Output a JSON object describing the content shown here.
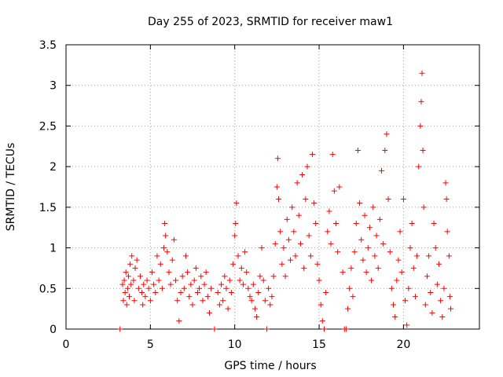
{
  "chart_data": {
    "type": "scatter",
    "title": "Day 255 of 2023, SRMTID for receiver maw1",
    "xlabel": "GPS time / hours",
    "ylabel": "SRMTID / TECUs",
    "xlim": [
      0,
      24.5
    ],
    "ylim": [
      0,
      3.5
    ],
    "xticks": [
      0,
      5,
      10,
      15,
      20
    ],
    "xtick_labels": [
      "0",
      "5",
      "10",
      "15",
      "20"
    ],
    "yticks": [
      0,
      0.5,
      1,
      1.5,
      2,
      2.5,
      3,
      3.5
    ],
    "ytick_labels": [
      "0",
      "0.5",
      "1",
      "1.5",
      "2",
      "2.5",
      "3",
      "3.5"
    ],
    "grid": true,
    "marker": "+",
    "color": "#ff0000",
    "series": [
      {
        "name": "maw1",
        "points": [
          [
            3.2,
            0.0
          ],
          [
            3.35,
            0.55
          ],
          [
            3.4,
            0.35
          ],
          [
            3.45,
            0.6
          ],
          [
            3.5,
            0.45
          ],
          [
            3.55,
            0.7
          ],
          [
            3.6,
            0.3
          ],
          [
            3.65,
            0.5
          ],
          [
            3.7,
            0.65
          ],
          [
            3.75,
            0.4
          ],
          [
            3.8,
            0.8
          ],
          [
            3.85,
            0.55
          ],
          [
            3.9,
            0.9
          ],
          [
            4.0,
            0.6
          ],
          [
            4.05,
            0.35
          ],
          [
            4.1,
            0.75
          ],
          [
            4.2,
            0.85
          ],
          [
            4.3,
            0.5
          ],
          [
            4.4,
            0.65
          ],
          [
            4.5,
            0.45
          ],
          [
            4.55,
            0.3
          ],
          [
            4.6,
            0.55
          ],
          [
            4.7,
            0.4
          ],
          [
            4.8,
            0.6
          ],
          [
            4.9,
            0.5
          ],
          [
            5.0,
            0.35
          ],
          [
            5.1,
            0.7
          ],
          [
            5.2,
            0.55
          ],
          [
            5.3,
            0.45
          ],
          [
            5.4,
            0.9
          ],
          [
            5.5,
            0.6
          ],
          [
            5.6,
            0.8
          ],
          [
            5.7,
            0.5
          ],
          [
            5.8,
            1.0
          ],
          [
            5.85,
            1.3
          ],
          [
            5.9,
            1.15
          ],
          [
            6.0,
            0.95
          ],
          [
            6.1,
            0.7
          ],
          [
            6.2,
            0.55
          ],
          [
            6.3,
            0.85
          ],
          [
            6.4,
            1.1
          ],
          [
            6.5,
            0.6
          ],
          [
            6.6,
            0.35
          ],
          [
            6.7,
            0.1
          ],
          [
            6.8,
            0.45
          ],
          [
            6.9,
            0.65
          ],
          [
            7.0,
            0.5
          ],
          [
            7.1,
            0.9
          ],
          [
            7.2,
            0.7
          ],
          [
            7.3,
            0.4
          ],
          [
            7.4,
            0.55
          ],
          [
            7.5,
            0.3
          ],
          [
            7.6,
            0.6
          ],
          [
            7.7,
            0.75
          ],
          [
            7.8,
            0.45
          ],
          [
            7.9,
            0.5
          ],
          [
            8.0,
            0.65
          ],
          [
            8.1,
            0.35
          ],
          [
            8.2,
            0.55
          ],
          [
            8.3,
            0.7
          ],
          [
            8.4,
            0.4
          ],
          [
            8.5,
            0.2
          ],
          [
            8.6,
            0.5
          ],
          [
            8.8,
            0.0
          ],
          [
            9.0,
            0.45
          ],
          [
            9.1,
            0.3
          ],
          [
            9.2,
            0.55
          ],
          [
            9.3,
            0.35
          ],
          [
            9.4,
            0.65
          ],
          [
            9.5,
            0.5
          ],
          [
            9.6,
            0.25
          ],
          [
            9.7,
            0.6
          ],
          [
            9.8,
            0.45
          ],
          [
            9.9,
            0.8
          ],
          [
            10.0,
            1.15
          ],
          [
            10.05,
            1.3
          ],
          [
            10.1,
            1.55
          ],
          [
            10.2,
            0.9
          ],
          [
            10.3,
            0.6
          ],
          [
            10.4,
            0.75
          ],
          [
            10.5,
            0.55
          ],
          [
            10.6,
            0.95
          ],
          [
            10.7,
            0.7
          ],
          [
            10.8,
            0.5
          ],
          [
            10.9,
            0.4
          ],
          [
            11.0,
            0.35
          ],
          [
            11.1,
            0.55
          ],
          [
            11.2,
            0.25
          ],
          [
            11.3,
            0.15
          ],
          [
            11.4,
            0.45
          ],
          [
            11.5,
            0.65
          ],
          [
            11.6,
            1.0
          ],
          [
            11.7,
            0.6
          ],
          [
            11.8,
            0.35
          ],
          [
            11.9,
            0.0
          ],
          [
            12.0,
            0.5
          ],
          [
            12.1,
            0.3
          ],
          [
            12.2,
            0.4
          ],
          [
            12.3,
            0.65
          ],
          [
            12.4,
            1.05
          ],
          [
            12.5,
            1.75
          ],
          [
            12.55,
            2.1
          ],
          [
            12.6,
            1.6
          ],
          [
            12.7,
            1.2
          ],
          [
            12.8,
            0.8
          ],
          [
            12.9,
            1.0
          ],
          [
            13.0,
            0.65
          ],
          [
            13.1,
            1.35
          ],
          [
            13.2,
            1.1
          ],
          [
            13.3,
            0.85
          ],
          [
            13.4,
            1.5
          ],
          [
            13.5,
            1.2
          ],
          [
            13.6,
            0.9
          ],
          [
            13.7,
            1.8
          ],
          [
            13.8,
            1.4
          ],
          [
            13.9,
            1.05
          ],
          [
            14.0,
            1.9
          ],
          [
            14.1,
            0.75
          ],
          [
            14.2,
            1.6
          ],
          [
            14.3,
            2.0
          ],
          [
            14.4,
            1.15
          ],
          [
            14.5,
            0.9
          ],
          [
            14.6,
            2.15
          ],
          [
            14.7,
            1.55
          ],
          [
            14.8,
            1.3
          ],
          [
            14.9,
            0.8
          ],
          [
            15.0,
            0.6
          ],
          [
            15.1,
            0.3
          ],
          [
            15.2,
            0.1
          ],
          [
            15.3,
            0.0
          ],
          [
            15.4,
            0.45
          ],
          [
            15.5,
            1.2
          ],
          [
            15.6,
            1.45
          ],
          [
            15.7,
            1.05
          ],
          [
            15.8,
            2.15
          ],
          [
            15.9,
            1.7
          ],
          [
            16.0,
            1.3
          ],
          [
            16.1,
            0.95
          ],
          [
            16.2,
            1.75
          ],
          [
            16.4,
            0.7
          ],
          [
            16.5,
            0.0
          ],
          [
            16.6,
            0.0
          ],
          [
            16.7,
            0.25
          ],
          [
            16.8,
            0.5
          ],
          [
            16.9,
            0.75
          ],
          [
            17.0,
            0.4
          ],
          [
            17.1,
            0.95
          ],
          [
            17.2,
            1.3
          ],
          [
            17.3,
            2.2
          ],
          [
            17.4,
            1.55
          ],
          [
            17.5,
            1.1
          ],
          [
            17.6,
            0.85
          ],
          [
            17.7,
            1.4
          ],
          [
            17.8,
            0.7
          ],
          [
            17.9,
            1.0
          ],
          [
            18.0,
            1.25
          ],
          [
            18.1,
            0.6
          ],
          [
            18.2,
            1.5
          ],
          [
            18.3,
            0.9
          ],
          [
            18.4,
            1.15
          ],
          [
            18.5,
            0.75
          ],
          [
            18.6,
            1.35
          ],
          [
            18.7,
            1.95
          ],
          [
            18.8,
            1.05
          ],
          [
            18.9,
            2.2
          ],
          [
            19.0,
            2.4
          ],
          [
            19.1,
            1.6
          ],
          [
            19.2,
            0.95
          ],
          [
            19.3,
            0.5
          ],
          [
            19.4,
            0.3
          ],
          [
            19.5,
            0.15
          ],
          [
            19.6,
            0.6
          ],
          [
            19.7,
            0.85
          ],
          [
            19.8,
            1.2
          ],
          [
            19.9,
            0.7
          ],
          [
            20.0,
            1.6
          ],
          [
            20.1,
            0.35
          ],
          [
            20.2,
            0.05
          ],
          [
            20.3,
            0.5
          ],
          [
            20.4,
            1.0
          ],
          [
            20.5,
            1.3
          ],
          [
            20.6,
            0.75
          ],
          [
            20.7,
            0.4
          ],
          [
            20.8,
            0.9
          ],
          [
            20.9,
            2.0
          ],
          [
            21.0,
            2.5
          ],
          [
            21.05,
            2.8
          ],
          [
            21.1,
            3.15
          ],
          [
            21.15,
            2.2
          ],
          [
            21.2,
            1.5
          ],
          [
            21.3,
            0.3
          ],
          [
            21.4,
            0.65
          ],
          [
            21.5,
            0.9
          ],
          [
            21.6,
            0.45
          ],
          [
            21.7,
            0.2
          ],
          [
            21.8,
            1.3
          ],
          [
            21.9,
            1.0
          ],
          [
            22.0,
            0.55
          ],
          [
            22.1,
            0.8
          ],
          [
            22.2,
            0.35
          ],
          [
            22.3,
            0.15
          ],
          [
            22.4,
            0.5
          ],
          [
            22.5,
            1.8
          ],
          [
            22.55,
            1.6
          ],
          [
            22.6,
            1.2
          ],
          [
            22.7,
            0.9
          ],
          [
            22.75,
            0.4
          ],
          [
            22.8,
            0.25
          ]
        ]
      }
    ]
  }
}
